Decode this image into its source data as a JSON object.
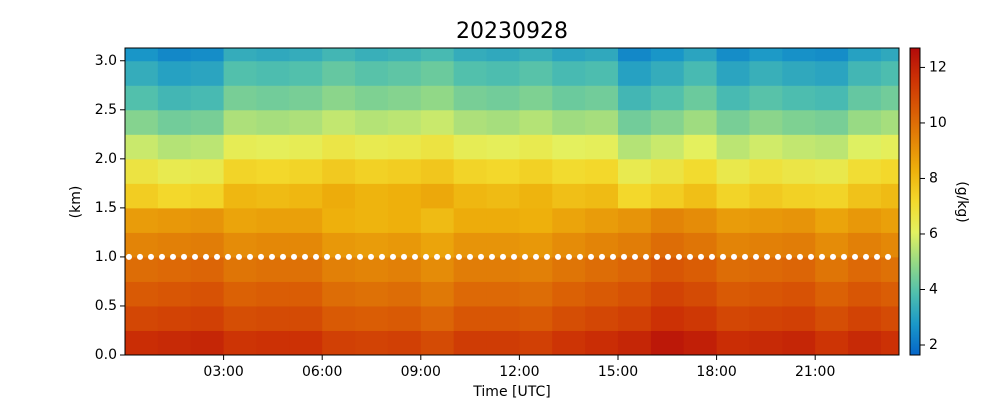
{
  "chart_data": {
    "type": "heatmap",
    "title": "20230928",
    "xlabel": "Time [UTC]",
    "ylabel": "(km)",
    "colorbar_label": "(g/kg)",
    "xlim": [
      0,
      23.55
    ],
    "ylim": [
      0,
      3.13
    ],
    "clim": [
      1.64,
      12.7
    ],
    "xticks": [
      {
        "value": 3,
        "label": "03:00"
      },
      {
        "value": 6,
        "label": "06:00"
      },
      {
        "value": 9,
        "label": "09:00"
      },
      {
        "value": 12,
        "label": "12:00"
      },
      {
        "value": 15,
        "label": "15:00"
      },
      {
        "value": 18,
        "label": "18:00"
      },
      {
        "value": 21,
        "label": "21:00"
      }
    ],
    "yticks": [
      {
        "value": 0,
        "label": "0.0"
      },
      {
        "value": 0.5,
        "label": "0.5"
      },
      {
        "value": 1,
        "label": "1.0"
      },
      {
        "value": 1.5,
        "label": "1.5"
      },
      {
        "value": 2,
        "label": "2.0"
      },
      {
        "value": 2.5,
        "label": "2.5"
      },
      {
        "value": 3,
        "label": "3.0"
      }
    ],
    "cticks": [
      2,
      4,
      6,
      8,
      10,
      12
    ],
    "colormap": [
      "#0565c8",
      "#1a98c8",
      "#4fbfae",
      "#95d985",
      "#e3f160",
      "#f3d92c",
      "#eeb10c",
      "#e38507",
      "#d95a05",
      "#cc3105",
      "#b30a0a"
    ],
    "hline": 1.0,
    "hline_color": "#ffffff",
    "x_edges": [
      0,
      1,
      2,
      3,
      4,
      5,
      6,
      7,
      8,
      9,
      10,
      11,
      12,
      13,
      14,
      15,
      16,
      17,
      18,
      19,
      20,
      21,
      22,
      23,
      23.55
    ],
    "y_edges": [
      0,
      0.25,
      0.5,
      0.75,
      1,
      1.25,
      1.5,
      1.75,
      2,
      2.25,
      2.5,
      2.75,
      3,
      3.13
    ],
    "z": [
      [
        11.7,
        11.8,
        11.9,
        11.5,
        11.6,
        11.6,
        11.2,
        11.1,
        11.2,
        10.9,
        11.3,
        11.3,
        11.2,
        11.5,
        11.7,
        11.9,
        12.3,
        12.1,
        11.7,
        11.8,
        11.9,
        11.5,
        11.8,
        11.6
      ],
      [
        11.0,
        11.1,
        11.2,
        10.8,
        10.9,
        10.9,
        10.5,
        10.4,
        10.5,
        10.2,
        10.6,
        10.6,
        10.5,
        10.8,
        11.0,
        11.2,
        11.6,
        11.4,
        11.0,
        11.1,
        11.2,
        10.8,
        11.1,
        10.9
      ],
      [
        10.5,
        10.6,
        10.7,
        10.3,
        10.4,
        10.4,
        10.0,
        9.9,
        10.0,
        9.7,
        10.1,
        10.1,
        10.0,
        10.3,
        10.5,
        10.7,
        11.1,
        10.9,
        10.5,
        10.6,
        10.7,
        10.3,
        10.6,
        10.4
      ],
      [
        10.0,
        10.1,
        10.2,
        9.8,
        9.9,
        9.9,
        9.5,
        9.4,
        9.5,
        9.2,
        9.6,
        9.6,
        9.5,
        9.8,
        10.0,
        10.2,
        10.6,
        10.4,
        10.0,
        10.1,
        10.2,
        9.8,
        10.1,
        9.9
      ],
      [
        9.4,
        9.5,
        9.6,
        9.2,
        9.3,
        9.3,
        8.9,
        8.8,
        8.9,
        8.6,
        9.0,
        9.0,
        8.9,
        9.2,
        9.4,
        9.6,
        10.0,
        9.8,
        9.4,
        9.5,
        9.6,
        9.2,
        9.5,
        9.3
      ],
      [
        8.8,
        8.9,
        9.0,
        8.6,
        8.7,
        8.7,
        8.3,
        8.2,
        8.3,
        8.0,
        8.4,
        8.4,
        8.3,
        8.6,
        8.8,
        9.0,
        9.4,
        9.2,
        8.8,
        8.9,
        9.0,
        8.6,
        8.9,
        8.7
      ],
      [
        7.5,
        7.2,
        7.3,
        8.1,
        8.0,
        8.1,
        8.4,
        8.2,
        8.3,
        8.5,
        8.1,
        8.0,
        8.2,
        7.9,
        8.0,
        7.2,
        7.5,
        7.9,
        7.3,
        7.6,
        7.4,
        7.3,
        7.8,
        8.0
      ],
      [
        6.7,
        6.4,
        6.5,
        7.3,
        7.2,
        7.3,
        7.6,
        7.4,
        7.5,
        7.7,
        7.3,
        7.2,
        7.4,
        7.1,
        7.2,
        6.4,
        6.7,
        7.1,
        6.5,
        6.8,
        6.6,
        6.5,
        7.0,
        7.2
      ],
      [
        5.7,
        5.4,
        5.5,
        6.3,
        6.2,
        6.3,
        6.6,
        6.4,
        6.5,
        6.7,
        6.3,
        6.2,
        6.4,
        6.1,
        6.2,
        5.4,
        5.7,
        6.1,
        5.5,
        5.8,
        5.6,
        5.5,
        6.0,
        6.2
      ],
      [
        4.7,
        4.4,
        4.5,
        5.3,
        5.2,
        5.3,
        5.6,
        5.4,
        5.5,
        5.7,
        5.3,
        5.2,
        5.4,
        5.1,
        5.2,
        4.4,
        4.7,
        5.1,
        4.5,
        4.8,
        4.6,
        4.5,
        5.0,
        5.2
      ],
      [
        3.9,
        3.6,
        3.7,
        4.5,
        4.4,
        4.5,
        4.8,
        4.6,
        4.7,
        4.9,
        4.5,
        4.4,
        4.6,
        4.3,
        4.4,
        3.6,
        3.9,
        4.3,
        3.7,
        4.0,
        3.8,
        3.7,
        4.2,
        4.4
      ],
      [
        3.3,
        3.0,
        3.1,
        3.9,
        3.8,
        3.9,
        4.2,
        4.0,
        4.1,
        4.3,
        3.9,
        3.8,
        4.0,
        3.7,
        3.8,
        3.0,
        3.3,
        3.7,
        3.1,
        3.4,
        3.2,
        3.1,
        3.6,
        3.8
      ],
      [
        2.7,
        2.4,
        2.5,
        3.3,
        3.2,
        3.3,
        3.6,
        3.4,
        3.5,
        3.7,
        3.3,
        3.2,
        3.4,
        3.1,
        3.2,
        2.4,
        2.7,
        3.1,
        2.5,
        2.8,
        2.6,
        2.5,
        3.0,
        3.2
      ]
    ]
  }
}
